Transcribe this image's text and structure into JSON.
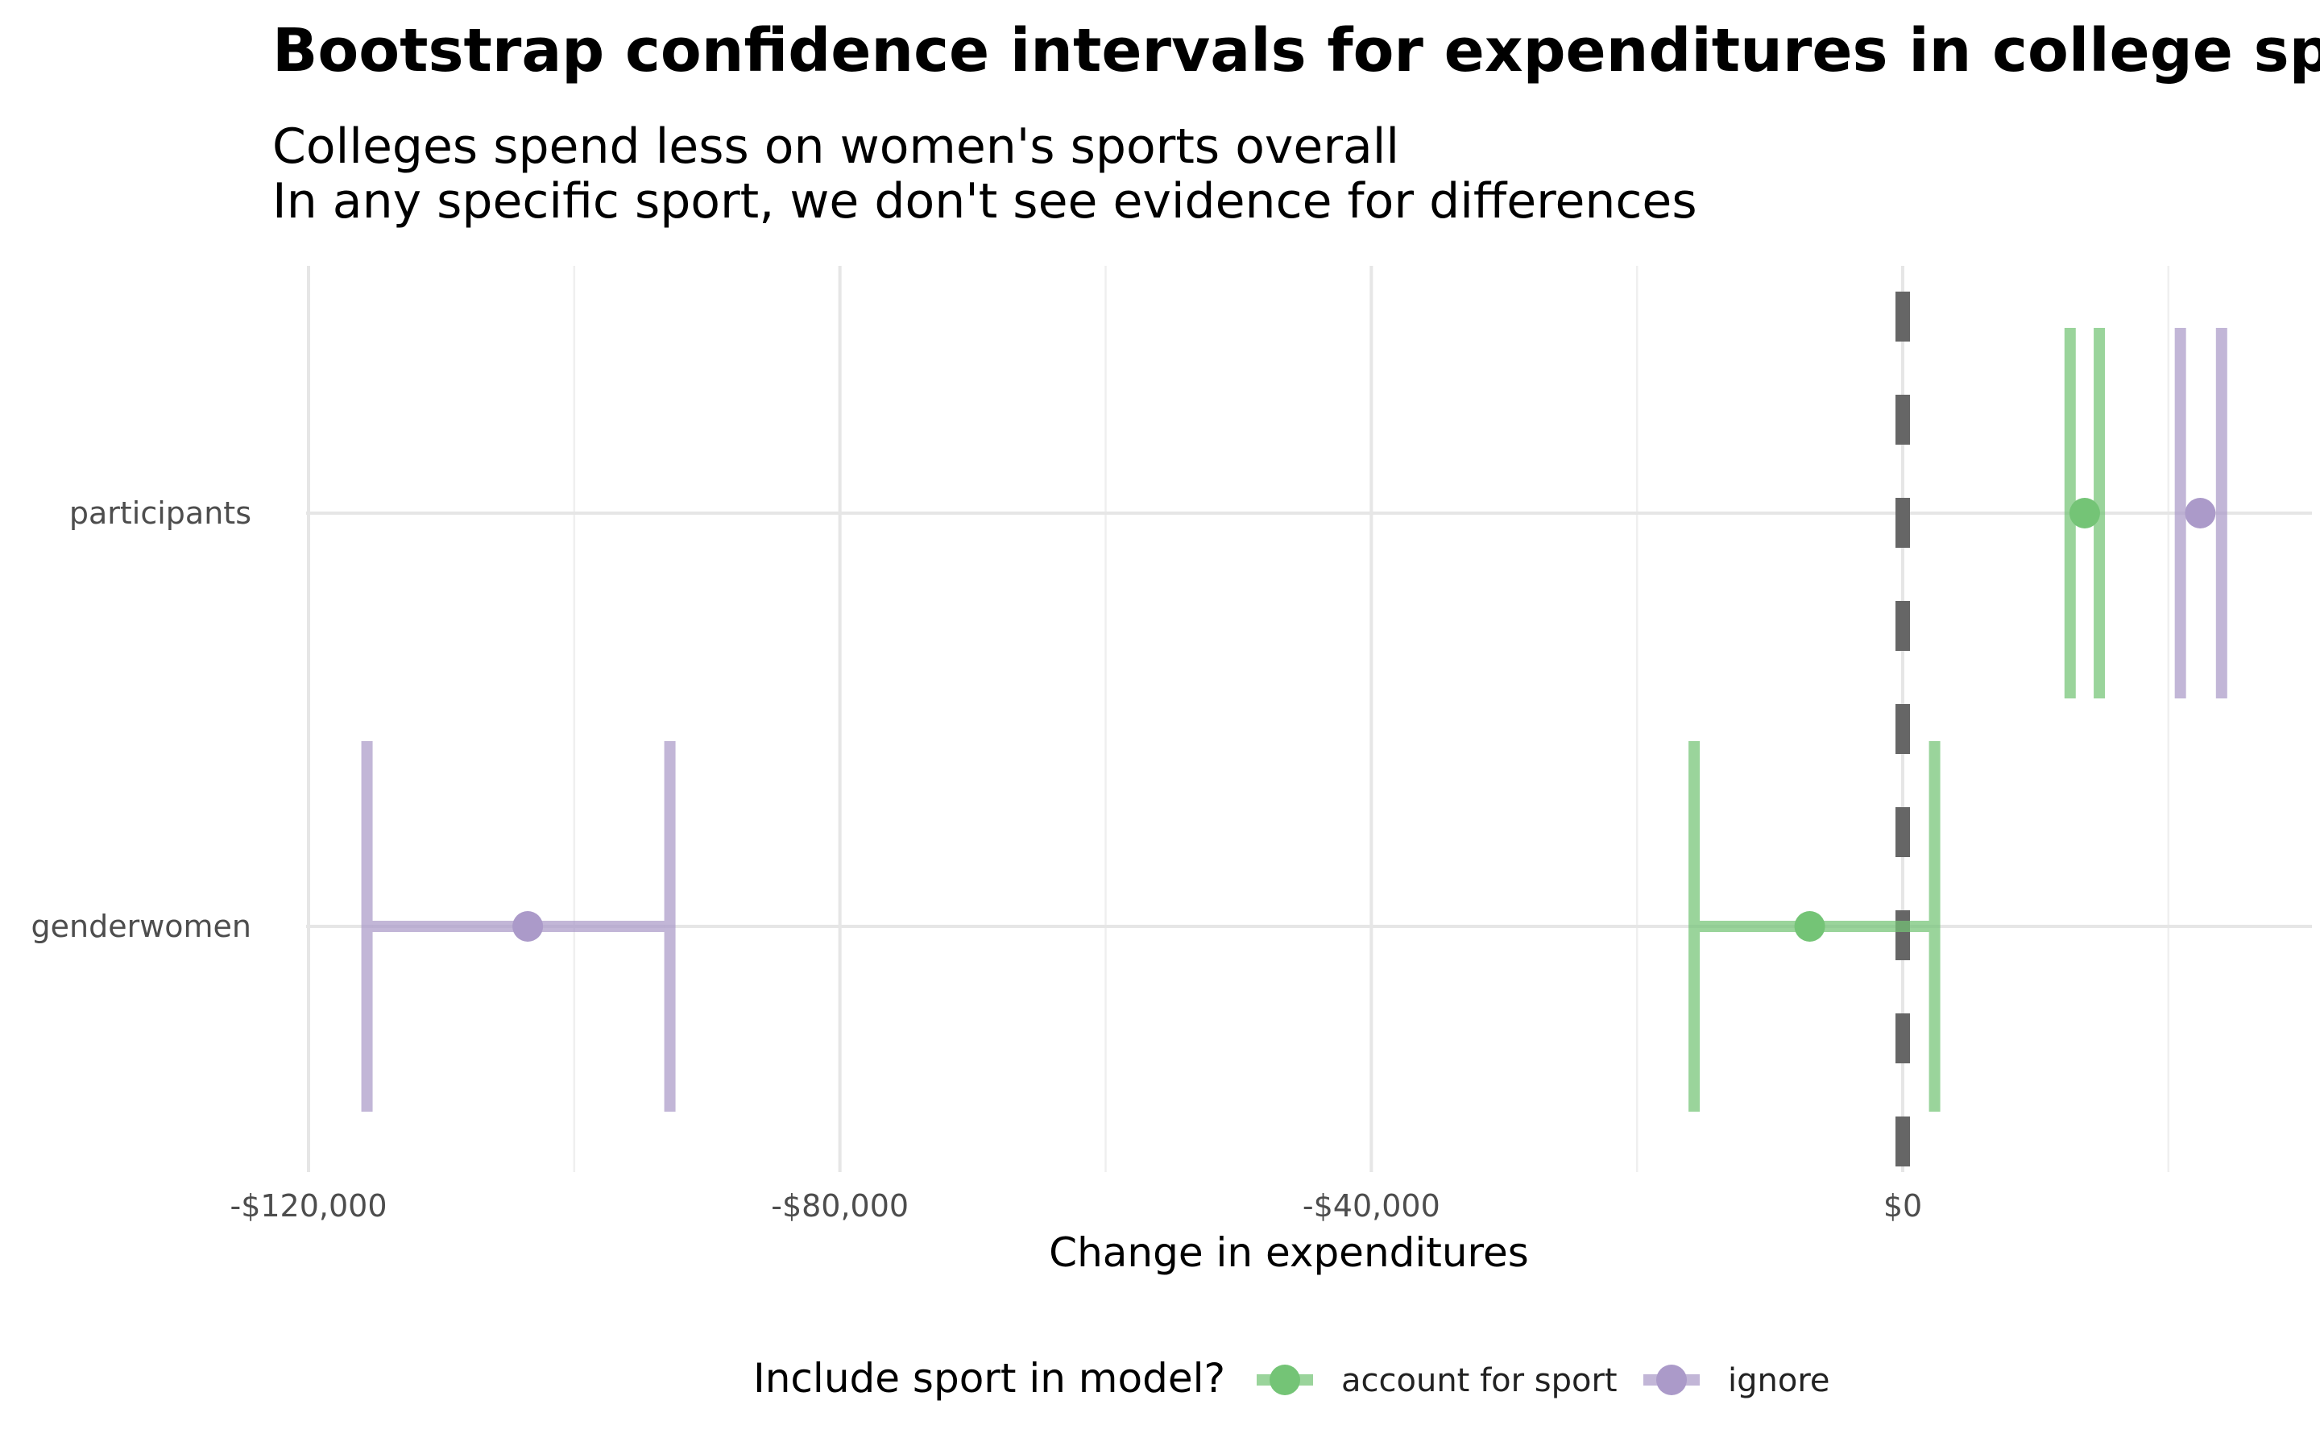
{
  "chart_data": {
    "type": "errorbar",
    "title": "Bootstrap confidence intervals for expenditures in college sports",
    "subtitle": [
      "Colleges spend less on women's sports overall",
      "In any specific sport, we don't see evidence for differences"
    ],
    "xlabel": "Change in expenditures",
    "ylabel": "",
    "xlim": [
      -120000,
      30000
    ],
    "x_ticks": [
      -120000,
      -80000,
      -40000,
      0
    ],
    "x_tick_labels": [
      "-$120,000",
      "-$80,000",
      "-$40,000",
      "$0"
    ],
    "categories": [
      "participants",
      "genderwomen"
    ],
    "reference_line": {
      "x": 0,
      "style": "dashed",
      "color": "#666666"
    },
    "grid": true,
    "legend": {
      "title": "Include sport in model?",
      "position": "bottom",
      "entries": [
        "account for sport",
        "ignore"
      ]
    },
    "series": [
      {
        "name": "account for sport",
        "color": "#74c476",
        "points": [
          {
            "term": "participants",
            "estimate": 13700,
            "lower": 12600,
            "upper": 14800
          },
          {
            "term": "genderwomen",
            "estimate": -7000,
            "lower": -15700,
            "upper": 2400
          }
        ]
      },
      {
        "name": "ignore",
        "color": "#ab9ac9",
        "points": [
          {
            "term": "participants",
            "estimate": 22400,
            "lower": 20900,
            "upper": 24000
          },
          {
            "term": "genderwomen",
            "estimate": -103500,
            "lower": -115600,
            "upper": -92800
          }
        ]
      }
    ]
  }
}
